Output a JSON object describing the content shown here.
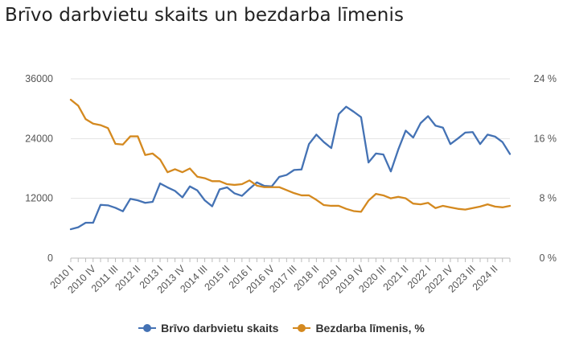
{
  "chart_data": {
    "type": "line",
    "title": "Brīvo darbvietu skaits un bezdarba līmenis",
    "left_axis": {
      "ticks": [
        "0",
        "12000",
        "24000",
        "36000"
      ],
      "values": [
        0,
        12000,
        24000,
        36000
      ],
      "range": [
        0,
        36000
      ]
    },
    "right_axis": {
      "ticks": [
        "0 %",
        "8 %",
        "16 %",
        "24 %"
      ],
      "values": [
        0,
        8,
        16,
        24
      ],
      "range": [
        0,
        24
      ]
    },
    "x_labels": [
      "2010 I",
      "2010 IV",
      "2011 III",
      "2012 II",
      "2013 I",
      "2013 IV",
      "2014 III",
      "2015 II",
      "2016 I",
      "2016 IV",
      "2017 III",
      "2018 II",
      "2019 I",
      "2019 IV",
      "2020 III",
      "2021 II",
      "2022 I",
      "2022 IV",
      "2023 III",
      "2024 II"
    ],
    "grid": "horizontal",
    "legend_position": "bottom",
    "series": [
      {
        "name": "Brīvo darbvietu skaits",
        "axis": "left",
        "color": "#4472b4",
        "values": [
          5800,
          6200,
          7100,
          7100,
          10700,
          10600,
          10100,
          9400,
          11900,
          11600,
          11100,
          11300,
          15000,
          14200,
          13500,
          12200,
          14400,
          13600,
          11600,
          10400,
          13800,
          14200,
          13000,
          12500,
          13900,
          15200,
          14500,
          14400,
          16300,
          16700,
          17700,
          17800,
          22900,
          24800,
          23300,
          22100,
          28900,
          30400,
          29400,
          28300,
          19200,
          21000,
          20800,
          17400,
          21800,
          25600,
          24200,
          27100,
          28500,
          26600,
          26200,
          22900,
          24000,
          25200,
          25300,
          22900,
          24800,
          24400,
          23300,
          20900
        ]
      },
      {
        "name": "Bezdarba līmenis, %",
        "axis": "right",
        "color": "#d4891f",
        "values": [
          21.2,
          20.4,
          18.6,
          18.0,
          17.8,
          17.4,
          15.3,
          15.2,
          16.3,
          16.3,
          13.8,
          14.0,
          13.2,
          11.5,
          11.9,
          11.5,
          12.0,
          10.9,
          10.7,
          10.3,
          10.3,
          9.9,
          9.8,
          9.9,
          10.4,
          9.7,
          9.5,
          9.5,
          9.5,
          9.1,
          8.7,
          8.4,
          8.4,
          7.8,
          7.1,
          7.0,
          7.0,
          6.6,
          6.3,
          6.2,
          7.7,
          8.6,
          8.4,
          8.0,
          8.2,
          8.0,
          7.3,
          7.2,
          7.4,
          6.7,
          7.0,
          6.8,
          6.6,
          6.5,
          6.7,
          6.9,
          7.2,
          6.9,
          6.8,
          7.0
        ]
      }
    ]
  }
}
